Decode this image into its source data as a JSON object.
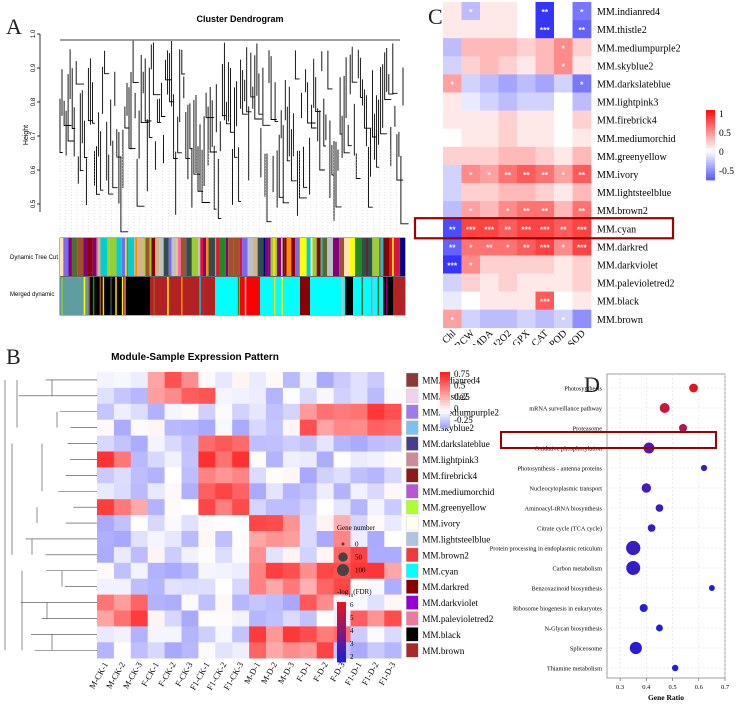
{
  "panels": {
    "a": "A",
    "b": "B",
    "c": "C",
    "d": "D"
  },
  "dendrogram": {
    "title": "Cluster Dendrogram",
    "ylabel": "Height",
    "yticks": [
      "1.0",
      "0.9",
      "0.8",
      "0.7",
      "0.6",
      "0.5"
    ],
    "bar_labels": [
      "Dynamic Tree Cut",
      "Merged dynamic"
    ]
  },
  "heatmap_b": {
    "title": "Module-Sample Expression Pattern",
    "modules": [
      "MM.indianred4",
      "MM.thistle2",
      "MM.mediumpurple2",
      "MM.skyblue2",
      "MM.darkslateblue",
      "MM.lightpink3",
      "MM.firebrick4",
      "MM.mediumorchid",
      "MM.greenyellow",
      "MM.ivory",
      "MM.lightsteelblue",
      "MM.brown2",
      "MM.cyan",
      "MM.darkred",
      "MM.darkviolet",
      "MM.palevioletred2",
      "MM.black",
      "MM.brown"
    ],
    "module_colors": [
      "#8b3a3a",
      "#eed2ee",
      "#9f79ee",
      "#7ec0ee",
      "#483d8b",
      "#cd8c95",
      "#8b1a1a",
      "#ba55d3",
      "#adff2f",
      "#fffff0",
      "#b0c4de",
      "#ee3b3b",
      "#00ffff",
      "#8b0000",
      "#9400d3",
      "#ee799f",
      "#000000",
      "#a52a2a"
    ],
    "samples": [
      "M-CK-1",
      "M-CK-2",
      "M-CK-3",
      "F-CK-1",
      "F-CK-2",
      "F-CK-3",
      "F1-CK-1",
      "F1-CK-2",
      "F1-CK-3",
      "M-D-1",
      "M-D-2",
      "M-D-3",
      "F-D-1",
      "F-D-2",
      "F-D-3",
      "F1-D-1",
      "F1-D-2",
      "F1-D-3"
    ],
    "legend_ticks": [
      "0.75",
      "0.5",
      "0.25",
      "0",
      "-0.25"
    ]
  },
  "heatmap_c": {
    "modules": [
      "MM.indianred4",
      "MM.thistle2",
      "MM.mediumpurple2",
      "MM.skyblue2",
      "MM.darkslateblue",
      "MM.lightpink3",
      "MM.firebrick4",
      "MM.mediumorchid",
      "MM.greenyellow",
      "MM.ivory",
      "MM.lightsteelblue",
      "MM.brown2",
      "MM.cyan",
      "MM.darkred",
      "MM.darkviolet",
      "MM.palevioletred2",
      "MM.black",
      "MM.brown"
    ],
    "traits": [
      "Chl",
      "RCW",
      "MDA",
      "H2O2",
      "GPX",
      "CAT",
      "POD",
      "SOD"
    ],
    "legend_ticks": [
      "1",
      "0.5",
      "0",
      "-0.5"
    ],
    "highlight": "MM.cyan",
    "values": [
      [
        0.1,
        -0.3,
        0.1,
        0.1,
        0.0,
        -0.9,
        0.0,
        -0.6
      ],
      [
        0.1,
        0.1,
        0.1,
        0.1,
        0.0,
        -0.9,
        0.0,
        -0.7
      ],
      [
        -0.3,
        0.3,
        0.3,
        0.3,
        0.2,
        0.3,
        0.5,
        0.2
      ],
      [
        -0.2,
        0.2,
        0.3,
        0.2,
        0.1,
        0.3,
        0.5,
        0.1
      ],
      [
        0.4,
        -0.2,
        -0.3,
        -0.4,
        -0.3,
        -0.4,
        -0.2,
        -0.6
      ],
      [
        0.1,
        -0.1,
        -0.2,
        -0.3,
        -0.2,
        -0.2,
        0.0,
        -0.3
      ],
      [
        0.1,
        0.1,
        0.1,
        0.2,
        0.1,
        0.1,
        0.0,
        0.2
      ],
      [
        0.0,
        0.1,
        0.1,
        0.2,
        0.1,
        0.1,
        0.0,
        0.1
      ],
      [
        0.2,
        0.2,
        0.2,
        0.3,
        0.3,
        0.2,
        0.1,
        0.3
      ],
      [
        -0.2,
        0.5,
        0.4,
        0.6,
        0.7,
        0.6,
        0.4,
        0.7
      ],
      [
        -0.2,
        0.2,
        0.2,
        0.3,
        0.3,
        0.2,
        0.1,
        0.3
      ],
      [
        -0.3,
        0.4,
        0.3,
        0.5,
        0.6,
        0.6,
        0.3,
        0.6
      ],
      [
        -0.8,
        0.8,
        0.8,
        0.7,
        0.8,
        0.8,
        0.7,
        0.8
      ],
      [
        -0.7,
        0.6,
        0.6,
        0.6,
        0.7,
        0.8,
        0.5,
        0.8
      ],
      [
        -0.9,
        0.5,
        0.2,
        0.2,
        0.2,
        0.2,
        0.1,
        0.2
      ],
      [
        -0.2,
        0.2,
        0.1,
        0.2,
        0.1,
        0.1,
        0.1,
        0.2
      ],
      [
        -0.1,
        0.0,
        0.1,
        0.1,
        0.1,
        0.7,
        0.0,
        0.1
      ],
      [
        0.4,
        -0.2,
        -0.3,
        -0.3,
        -0.2,
        -0.3,
        -0.2,
        -0.5
      ]
    ],
    "stars": [
      [
        "",
        "*",
        "",
        "",
        "",
        "**",
        "",
        "*"
      ],
      [
        "",
        "",
        "",
        "",
        "",
        "***",
        "",
        "**"
      ],
      [
        "",
        "",
        "",
        "",
        "",
        "",
        "*",
        ""
      ],
      [
        "",
        "",
        "",
        "",
        "",
        "",
        "*",
        ""
      ],
      [
        "*",
        "",
        "",
        "",
        "",
        "",
        "",
        "*"
      ],
      [
        "",
        "",
        "",
        "",
        "",
        "",
        "",
        ""
      ],
      [
        "",
        "",
        "",
        "",
        "",
        "",
        "",
        ""
      ],
      [
        "",
        "",
        "",
        "",
        "",
        "",
        "",
        ""
      ],
      [
        "",
        "",
        "",
        "",
        "",
        "",
        "",
        ""
      ],
      [
        "",
        "*",
        "*",
        "**",
        "**",
        "**",
        "*",
        "**"
      ],
      [
        "",
        "",
        "",
        "",
        "",
        "",
        "",
        ""
      ],
      [
        "",
        "*",
        "",
        "*",
        "**",
        "**",
        "",
        "**"
      ],
      [
        "**",
        "***",
        "***",
        "**",
        "***",
        "***",
        "**",
        "***"
      ],
      [
        "**",
        "*",
        "**",
        "*",
        "**",
        "***",
        "*",
        "***"
      ],
      [
        "***",
        "*",
        "",
        "",
        "",
        "",
        "",
        ""
      ],
      [
        "",
        "",
        "",
        "",
        "",
        "",
        "",
        ""
      ],
      [
        "",
        "",
        "",
        "",
        "",
        "***",
        "",
        ""
      ],
      [
        "*",
        "",
        "",
        "",
        "",
        "",
        "*",
        ""
      ]
    ]
  },
  "chart_data": {
    "type": "scatter",
    "title": "",
    "xlabel": "Gene Ratio",
    "xlim": [
      0.25,
      0.7
    ],
    "xticks": [
      "0.3",
      "0.4",
      "0.5",
      "0.6",
      "0.7"
    ],
    "categories": [
      "Photosynthesis",
      "mRNA surveillance pathway",
      "Proteasome",
      "Oxidative phosphorylation",
      "Photosynthesis - antenna proteins",
      "Nucleocytoplasmic transport",
      "Aminoacyl-tRNA biosynthesis",
      "Citrate cycle (TCA cycle)",
      "Protein processing in endoplasmic reticulum",
      "Carbon metabolism",
      "Benzoxazinoid biosynthesis",
      "Ribosome biogenesis in eukaryotes",
      "N-Glycan biosynthesis",
      "Spliceosome",
      "Thiamine metabolism"
    ],
    "gene_ratio": [
      0.58,
      0.47,
      0.54,
      0.41,
      0.62,
      0.4,
      0.45,
      0.42,
      0.35,
      0.35,
      0.65,
      0.39,
      0.45,
      0.36,
      0.51
    ],
    "gene_number": [
      20,
      30,
      15,
      40,
      5,
      25,
      12,
      12,
      85,
      80,
      4,
      15,
      8,
      55,
      6
    ],
    "neg_log10_fdr": [
      6.2,
      5.6,
      5.0,
      3.0,
      2.6,
      2.6,
      2.4,
      2.3,
      2.4,
      2.3,
      1.8,
      2.0,
      1.9,
      2.1,
      1.8
    ],
    "highlight": "Oxidative phosphorylation",
    "size_legend": {
      "title": "Gene number",
      "labels": [
        "0",
        "50",
        "100"
      ]
    },
    "color_legend": {
      "title": "-log10(FDR)",
      "labels": [
        "6",
        "5",
        "4",
        "3",
        "2"
      ]
    }
  }
}
